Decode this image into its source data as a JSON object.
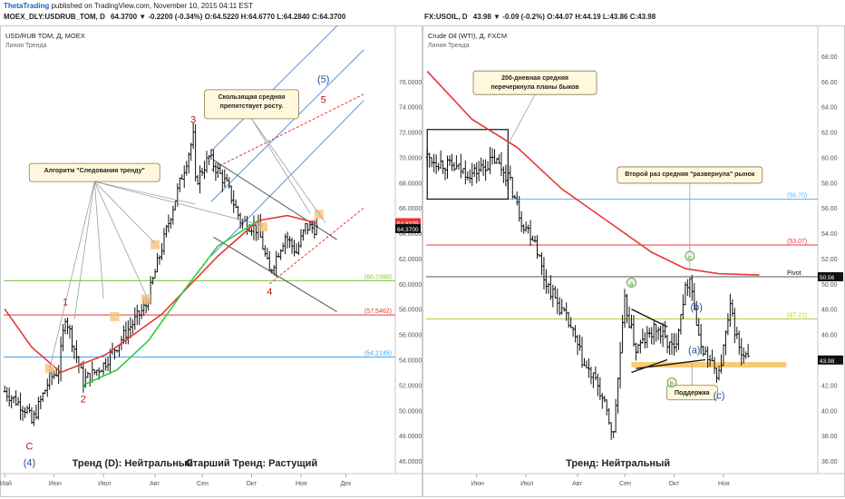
{
  "header": {
    "brand": "ThetaTrading",
    "published": "published on TradingView.com, November 10, 2015 04:11 EST",
    "left_symbol": "MOEX_DLY:USDRUB_TOM, D",
    "left_quote": "64.3700 ▼ -0.2200 (-0.34%) O:64.5220 H:64.6770 L:64.2840 C:64.3700",
    "right_symbol": "FX:USOIL, D",
    "right_quote": "43.98 ▼ -0.09 (-0.2%) O:44.07 H:44.19 L:43.86 C:43.98"
  },
  "chart_data": [
    {
      "type": "candlestick",
      "title": "USD/RUB TOM, Д, MOEX",
      "subtitle": "Линия Тренда",
      "ylim": [
        45,
        80
      ],
      "y_ticks": [
        46,
        48,
        50,
        52,
        54,
        56,
        58,
        60,
        62,
        64,
        66,
        68,
        70,
        72,
        74,
        76
      ],
      "x_labels": [
        {
          "label": "Май",
          "i": 0
        },
        {
          "label": "Июн",
          "i": 22
        },
        {
          "label": "Июл",
          "i": 44
        },
        {
          "label": "Авг",
          "i": 67
        },
        {
          "label": "Сен",
          "i": 88
        },
        {
          "label": "Окт",
          "i": 110
        },
        {
          "label": "Ноя",
          "i": 132
        },
        {
          "label": "Дек",
          "i": 152
        }
      ],
      "x_count": 160,
      "ohlc_path": [
        [
          0,
          51.5
        ],
        [
          10,
          50.0
        ],
        [
          12,
          49.0
        ],
        [
          20,
          52.5
        ],
        [
          24,
          53.2
        ],
        [
          27,
          57.5
        ],
        [
          35,
          52.3
        ],
        [
          44,
          53.6
        ],
        [
          55,
          56.4
        ],
        [
          63,
          58.3
        ],
        [
          74,
          65.5
        ],
        [
          84,
          71.6
        ],
        [
          85,
          68.0
        ],
        [
          91,
          70.0
        ],
        [
          99,
          67.8
        ],
        [
          105,
          65.0
        ],
        [
          113,
          64.3
        ],
        [
          118,
          60.9
        ],
        [
          125,
          63.8
        ],
        [
          130,
          62.5
        ],
        [
          134,
          64.5
        ],
        [
          139,
          64.37
        ]
      ],
      "candle_noise": 0.5,
      "sma": {
        "color": "#e53935",
        "points": [
          [
            0,
            58.0
          ],
          [
            12,
            55.0
          ],
          [
            25,
            53.0
          ],
          [
            45,
            54.4
          ],
          [
            70,
            57.6
          ],
          [
            95,
            62.2
          ],
          [
            113,
            65.0
          ],
          [
            126,
            65.4
          ],
          [
            139,
            64.8
          ]
        ]
      },
      "sma2": {
        "color": "#2ecc40",
        "points": [
          [
            35,
            52.0
          ],
          [
            50,
            53.2
          ],
          [
            64,
            55.5
          ],
          [
            80,
            59.5
          ],
          [
            95,
            63.0
          ],
          [
            106,
            64.2
          ],
          [
            113,
            65.0
          ]
        ]
      },
      "hlines": [
        {
          "value": 60.239,
          "label": "(60.2390)",
          "color": "#8bc34a"
        },
        {
          "value": 57.5462,
          "label": "(57.5462)",
          "color": "#e53935"
        },
        {
          "value": 54.2145,
          "label": "(54.2145)",
          "color": "#42a5f5"
        }
      ],
      "price_tags": [
        {
          "value": 64.8339,
          "label": "64.8339",
          "color": "#e53935"
        },
        {
          "value": 64.37,
          "label": "64.3700",
          "color": "#111111"
        }
      ],
      "channels": [
        {
          "color": "#5b8fd9",
          "dash": false,
          "lines": [
            [
              [
                92,
                66.5
              ],
              [
                160,
                78.5
              ]
            ],
            [
              [
                92,
                62.2
              ],
              [
                160,
                74.5
              ]
            ],
            [
              [
                92,
                70.5
              ],
              [
                160,
                82.5
              ]
            ]
          ]
        },
        {
          "color": "#e53935",
          "dash": true,
          "lines": [
            [
              [
                92,
                69.0
              ],
              [
                160,
                75.0
              ]
            ],
            [
              [
                118,
                60.0
              ],
              [
                160,
                66.0
              ]
            ]
          ]
        },
        {
          "color": "#555555",
          "dash": false,
          "lines": [
            [
              [
                93,
                69.8
              ],
              [
                148,
                63.5
              ]
            ],
            [
              [
                93,
                63.7
              ],
              [
                148,
                57.8
              ]
            ]
          ]
        }
      ],
      "wave_labels": [
        {
          "text": "1",
          "i": 27,
          "v": 58.6,
          "color": "#b71c1c"
        },
        {
          "text": "2",
          "i": 35,
          "v": 50.9,
          "color": "#b71c1c"
        },
        {
          "text": "3",
          "i": 84,
          "v": 73.0,
          "color": "#b71c1c"
        },
        {
          "text": "4",
          "i": 118,
          "v": 59.4,
          "color": "#b71c1c"
        },
        {
          "text": "5",
          "i": 142,
          "v": 74.6,
          "color": "#b71c1c"
        },
        {
          "text": "(5)",
          "i": 142,
          "v": 76.2,
          "color": "#1e4fa3"
        },
        {
          "text": "C",
          "i": 11,
          "v": 47.2,
          "color": "#b71c1c"
        },
        {
          "text": "(4)",
          "i": 11,
          "v": 45.9,
          "color": "#1e4fa3"
        }
      ],
      "callouts": [
        {
          "text": [
            "Алгоритм \"Следования тренду\""
          ],
          "i": 40,
          "v": 68.8,
          "w": 144,
          "h": 20,
          "pointers": [
            [
              20,
              53.3
            ],
            [
              31,
              57.2
            ],
            [
              44,
              58.8
            ],
            [
              63,
              59.1
            ],
            [
              67,
              63.2
            ],
            [
              85,
              66.3
            ],
            [
              115,
              64.6
            ]
          ]
        },
        {
          "text": [
            "Скользящая средняя",
            "препятствует росту."
          ],
          "i": 110,
          "v": 74.2,
          "w": 104,
          "h": 32,
          "pointers": [
            [
              136,
              65.6
            ],
            [
              143,
              64.8
            ]
          ]
        }
      ],
      "highlights": [
        [
          20,
          53.3
        ],
        [
          49,
          57.4
        ],
        [
          63,
          58.8
        ],
        [
          67,
          63.1
        ],
        [
          115,
          64.5
        ],
        [
          140,
          65.5
        ]
      ],
      "bottom_notes": [
        {
          "text": "Тренд (D): Нейтральный",
          "i": 57
        },
        {
          "text": "Старший Тренд: Растущий",
          "i": 110
        }
      ]
    },
    {
      "type": "candlestick",
      "title": "Crude Oil (WTI), Д, FXCM",
      "subtitle": "Линия Тренда",
      "ylim": [
        35,
        70
      ],
      "y_ticks": [
        36,
        38,
        40,
        42,
        44,
        46,
        48,
        50,
        52,
        54,
        56,
        58,
        60,
        62,
        64,
        66,
        68
      ],
      "x_labels": [
        {
          "label": "Июн",
          "i": 22
        },
        {
          "label": "Июл",
          "i": 44
        },
        {
          "label": "Авг",
          "i": 67
        },
        {
          "label": "Сен",
          "i": 88
        },
        {
          "label": "Окт",
          "i": 110
        },
        {
          "label": "Ноя",
          "i": 132
        }
      ],
      "x_count": 160,
      "ohlc_path": [
        [
          0,
          60.0
        ],
        [
          10,
          59.3
        ],
        [
          20,
          58.7
        ],
        [
          30,
          59.8
        ],
        [
          36,
          58.5
        ],
        [
          42,
          55.0
        ],
        [
          48,
          53.5
        ],
        [
          52,
          50.5
        ],
        [
          58,
          48.5
        ],
        [
          64,
          46.5
        ],
        [
          70,
          43.5
        ],
        [
          76,
          42.0
        ],
        [
          83,
          38.0
        ],
        [
          84,
          40.5
        ],
        [
          88,
          48.5
        ],
        [
          93,
          44.8
        ],
        [
          102,
          46.5
        ],
        [
          110,
          44.7
        ],
        [
          114,
          48.8
        ],
        [
          117,
          50.8
        ],
        [
          121,
          45.5
        ],
        [
          127,
          43.5
        ],
        [
          130,
          42.8
        ],
        [
          135,
          48.0
        ],
        [
          140,
          44.2
        ],
        [
          143,
          43.98
        ]
      ],
      "candle_noise": 0.55,
      "sma": {
        "color": "#e53935",
        "points": [
          [
            0,
            66.8
          ],
          [
            20,
            63.0
          ],
          [
            40,
            60.8
          ],
          [
            60,
            57.5
          ],
          [
            80,
            55.0
          ],
          [
            100,
            52.5
          ],
          [
            115,
            51.2
          ],
          [
            130,
            50.8
          ],
          [
            148,
            50.7
          ]
        ]
      },
      "hlines": [
        {
          "value": 56.7,
          "label": "(56.70)",
          "color": "#64b5f6"
        },
        {
          "value": 53.07,
          "label": "(53.07)",
          "color": "#e53935"
        },
        {
          "value": 50.56,
          "label": "Pivot",
          "color": "#555555"
        },
        {
          "value": 47.22,
          "label": "(47.22)",
          "color": "#c0ca33"
        }
      ],
      "price_tags": [
        {
          "value": 50.56,
          "label": "50.56",
          "color": "#111111"
        },
        {
          "value": 43.98,
          "label": "43.98",
          "color": "#111111"
        }
      ],
      "boxes": [
        {
          "i1": 0,
          "i2": 36,
          "v1": 56.7,
          "v2": 62.2
        }
      ],
      "segments": [
        {
          "color": "#111111",
          "lines": [
            [
              [
                91,
                48.0
              ],
              [
                107,
                46.6
              ]
            ],
            [
              [
                91,
                43.0
              ],
              [
                107,
                44.0
              ]
            ],
            [
              [
                93,
                43.3
              ],
              [
                124,
                44.0
              ]
            ]
          ]
        }
      ],
      "support": {
        "i1": 91,
        "i2": 160,
        "v": 43.6,
        "color": "#f4b942"
      },
      "wave_labels": [
        {
          "text": "a",
          "i": 91,
          "v": 50.1,
          "color": "#4a8f3a",
          "circle": true
        },
        {
          "text": "b",
          "i": 109,
          "v": 42.2,
          "color": "#4a8f3a",
          "circle": true
        },
        {
          "text": "c",
          "i": 117,
          "v": 52.2,
          "color": "#4a8f3a",
          "circle": true
        },
        {
          "text": "(b)",
          "i": 120,
          "v": 48.2,
          "color": "#1e4fa3"
        },
        {
          "text": "(a)",
          "i": 119,
          "v": 44.8,
          "color": "#1e4fa3"
        },
        {
          "text": "(c)",
          "i": 130,
          "v": 41.2,
          "color": "#1e4fa3"
        }
      ],
      "callouts": [
        {
          "text": [
            "200-дневная средняя",
            "перечеркнула планы быков"
          ],
          "i": 48,
          "v": 65.9,
          "w": 136,
          "h": 26,
          "pointers": [
            [
              36,
              61.0
            ]
          ]
        },
        {
          "text": [
            "Второй раз средняя \"развернула\" рынок"
          ],
          "i": 117,
          "v": 58.6,
          "w": 160,
          "h": 18,
          "pointers": [
            [
              117,
              51.0
            ]
          ]
        },
        {
          "text": [
            "Поддержка"
          ],
          "i": 118,
          "v": 41.4,
          "w": 56,
          "h": 16,
          "pointers": [
            [
              118,
              43.7
            ]
          ]
        }
      ],
      "bottom_notes": [
        {
          "text": "Тренд: Нейтральный",
          "i": 85
        }
      ]
    }
  ]
}
